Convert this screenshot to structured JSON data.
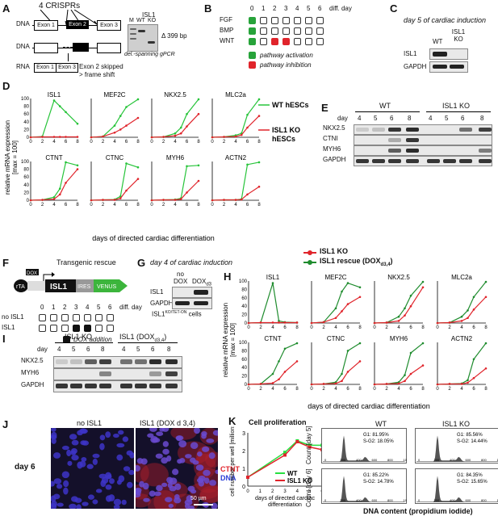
{
  "panels": {
    "A": {
      "label": "A",
      "crisprs": "4 CRISPRs",
      "dna": "DNA",
      "rna": "RNA",
      "exon1": "Exon 1",
      "exon2": "Exon 2",
      "exon3": "Exon 3",
      "gel_title": "ISL1",
      "gel_lanes": [
        "M",
        "WT",
        "KO"
      ],
      "delta": "Δ 399 bp",
      "gel_caption": "del.-spanning gPCR",
      "rna_note1": "Exon 2 skipped",
      "rna_note2": "> frame shift"
    },
    "B": {
      "label": "B",
      "days": [
        "0",
        "1",
        "2",
        "3",
        "4",
        "5",
        "6"
      ],
      "days_label": "diff. day",
      "rows": [
        {
          "name": "FGF",
          "cells": [
            "g",
            "",
            "",
            "",
            "",
            "",
            ""
          ]
        },
        {
          "name": "BMP",
          "cells": [
            "g",
            "",
            "",
            "",
            "",
            "",
            ""
          ]
        },
        {
          "name": "WNT",
          "cells": [
            "g",
            "",
            "r",
            "r",
            "",
            "",
            ""
          ]
        }
      ],
      "legend": [
        "pathway activation",
        "pathway inhibition"
      ],
      "colors": {
        "activation": "#27a33a",
        "inhibition": "#e0242b"
      }
    },
    "C": {
      "label": "C",
      "title": "day 5 of cardiac induction",
      "lanes": [
        "WT",
        "ISL1 KO"
      ],
      "rows": [
        "ISL1",
        "GAPDH"
      ]
    },
    "D": {
      "label": "D",
      "ylabel": "relative mRNA expression",
      "ylabel2": "[max = 100]",
      "xlabel": "days of directed cardiac differentiation",
      "legend_wt": "WT hESCs",
      "legend_ko1": "ISL1 KO",
      "legend_ko2": "hESCs",
      "genes": [
        "ISL1",
        "MEF2C",
        "NKX2.5",
        "MLC2a",
        "CTNT",
        "CTNC",
        "MYH6",
        "ACTN2"
      ]
    },
    "E": {
      "label": "E",
      "groups": [
        "WT",
        "ISL1 KO"
      ],
      "day_label": "day",
      "days": [
        "4",
        "5",
        "6",
        "8",
        "4",
        "5",
        "6",
        "8"
      ],
      "rows": [
        "NKX2.5",
        "CTNI",
        "MYH6",
        "GAPDH"
      ]
    },
    "F": {
      "label": "F",
      "title": "Transgenic rescue",
      "rta": "rTA",
      "dox": "DOX",
      "isl1": "ISL1",
      "ires": "IRES",
      "venus": "VENUS",
      "days": [
        "0",
        "1",
        "2",
        "3",
        "4",
        "5",
        "6"
      ],
      "days_label": "diff. day",
      "rows": [
        {
          "name": "no ISL1",
          "cells": [
            "",
            "",
            "",
            "",
            "",
            "",
            ""
          ]
        },
        {
          "name": "ISL1",
          "cells": [
            "",
            "",
            "",
            "k",
            "k",
            "",
            ""
          ]
        }
      ],
      "legend": "DOX addition"
    },
    "G": {
      "label": "G",
      "title": "day 4 of cardiac induction",
      "lane1a": "no",
      "lane1b": "DOX",
      "lane2": "DOX",
      "lane2_sub": "d3",
      "rows": [
        "ISL1",
        "GAPDH"
      ],
      "caption": "ISL1",
      "caption_sup": "KO/TET-ON",
      "caption_tail": " cells"
    },
    "H": {
      "label": "H",
      "legend_ko": "ISL1 KO",
      "legend_rescue": "ISL1 rescue (DOX",
      "legend_rescue_sub": "d3,4",
      "legend_rescue_tail": ")",
      "ylabel": "relative mRNA expression",
      "ylabel2": "[max = 100]",
      "xlabel": "days of directed cardiac differentiation",
      "genes": [
        "ISL1",
        "MEF2C",
        "NKX2.5",
        "MLC2a",
        "CTNT",
        "CTNC",
        "MYH6",
        "ACTN2"
      ]
    },
    "I": {
      "label": "I",
      "group1": "ISL1 KO",
      "group2": "ISL1 (DOX",
      "group2_sub": "d3,4",
      "group2_tail": ")",
      "day_label": "day",
      "days": [
        "4",
        "5",
        "6",
        "8",
        "4",
        "5",
        "6",
        "8"
      ],
      "rows": [
        "NKX2.5",
        "MYH6",
        "GAPDH"
      ]
    },
    "J": {
      "label": "J",
      "col1": "no ISL1",
      "col2": "ISL1 (DOX d 3,4)",
      "row": "day 6",
      "legend_ctnt": "CTNT",
      "legend_dna": "DNA",
      "scale": "50 µm"
    },
    "K": {
      "label": "K",
      "title": "Cell proliferation",
      "ylabel": "cell number per well [millions]",
      "xlabel1": "days of directed cardiac",
      "xlabel2": "differentiation",
      "legend": [
        "WT",
        "ISL1 KO"
      ],
      "col_wt": "WT",
      "col_ko": "ISL1 KO",
      "count_d5": "Count [day 5]",
      "count_d6": "Count [day 6]",
      "hist_xlabel": "DNA content (propidium iodide)",
      "stats": {
        "wt_d5": [
          "G1: 81.95%",
          "S-G2: 18.05%"
        ],
        "ko_d5": [
          "G1: 85.56%",
          "S-G2: 14.44%"
        ],
        "wt_d6": [
          "G1: 85.22%",
          "S-G2: 14.78%"
        ],
        "ko_d6": [
          "G1: 84.35%",
          "S-G2: 15.65%"
        ]
      },
      "hist_ticks": [
        "0",
        "200",
        "400",
        "600",
        "800",
        "1000"
      ]
    }
  },
  "chart_data": [
    {
      "type": "line",
      "panel": "D",
      "x": [
        0,
        2,
        4,
        5,
        6,
        8
      ],
      "ylim": [
        0,
        100
      ],
      "yticks": [
        0,
        20,
        40,
        60,
        80,
        100
      ],
      "xticks": [
        0,
        2,
        4,
        6,
        8
      ],
      "colors": {
        "wt": "#27c43a",
        "ko": "#e0242b"
      },
      "series": [
        {
          "gene": "ISL1",
          "wt": [
            0,
            2,
            95,
            80,
            65,
            35
          ],
          "ko": [
            0,
            1,
            1,
            1,
            1,
            1
          ]
        },
        {
          "gene": "MEF2C",
          "wt": [
            0,
            2,
            30,
            55,
            78,
            98
          ],
          "ko": [
            0,
            2,
            12,
            20,
            30,
            50
          ]
        },
        {
          "gene": "NKX2.5",
          "wt": [
            0,
            1,
            10,
            25,
            60,
            98
          ],
          "ko": [
            0,
            1,
            4,
            10,
            28,
            60
          ]
        },
        {
          "gene": "MLC2a",
          "wt": [
            0,
            1,
            5,
            10,
            58,
            98
          ],
          "ko": [
            0,
            1,
            2,
            6,
            25,
            55
          ]
        },
        {
          "gene": "CTNT",
          "wt": [
            0,
            1,
            8,
            30,
            98,
            90
          ],
          "ko": [
            0,
            1,
            3,
            15,
            45,
            80
          ]
        },
        {
          "gene": "CTNC",
          "wt": [
            0,
            1,
            2,
            10,
            95,
            85
          ],
          "ko": [
            0,
            1,
            1,
            5,
            25,
            55
          ]
        },
        {
          "gene": "MYH6",
          "wt": [
            0,
            1,
            2,
            5,
            88,
            90
          ],
          "ko": [
            0,
            1,
            1,
            3,
            20,
            50
          ]
        },
        {
          "gene": "ACTN2",
          "wt": [
            0,
            1,
            1,
            3,
            92,
            98
          ],
          "ko": [
            0,
            1,
            1,
            2,
            15,
            35
          ]
        }
      ]
    },
    {
      "type": "line",
      "panel": "H",
      "x": [
        0,
        2,
        4,
        5,
        6,
        8
      ],
      "ylim": [
        0,
        100
      ],
      "yticks": [
        0,
        20,
        40,
        60,
        80,
        100
      ],
      "xticks": [
        0,
        2,
        4,
        6,
        8
      ],
      "colors": {
        "rescue": "#1f8c2e",
        "ko": "#e0242b"
      },
      "series": [
        {
          "gene": "ISL1",
          "rescue": [
            0,
            1,
            95,
            5,
            2,
            1
          ],
          "ko": [
            0,
            1,
            1,
            1,
            1,
            1
          ]
        },
        {
          "gene": "MEF2C",
          "rescue": [
            0,
            2,
            35,
            75,
            95,
            85
          ],
          "ko": [
            0,
            2,
            12,
            28,
            45,
            62
          ]
        },
        {
          "gene": "NKX2.5",
          "rescue": [
            0,
            1,
            15,
            35,
            65,
            98
          ],
          "ko": [
            0,
            1,
            5,
            18,
            40,
            85
          ]
        },
        {
          "gene": "MLC2a",
          "rescue": [
            0,
            1,
            15,
            30,
            62,
            98
          ],
          "ko": [
            0,
            1,
            5,
            12,
            32,
            62
          ]
        },
        {
          "gene": "CTNT",
          "rescue": [
            0,
            1,
            25,
            55,
            85,
            98
          ],
          "ko": [
            0,
            1,
            3,
            12,
            30,
            55
          ]
        },
        {
          "gene": "CTNC",
          "rescue": [
            0,
            1,
            5,
            25,
            80,
            98
          ],
          "ko": [
            0,
            1,
            2,
            8,
            30,
            55
          ]
        },
        {
          "gene": "MYH6",
          "rescue": [
            0,
            1,
            5,
            22,
            75,
            98
          ],
          "ko": [
            0,
            1,
            2,
            8,
            25,
            45
          ]
        },
        {
          "gene": "ACTN2",
          "rescue": [
            0,
            1,
            2,
            10,
            60,
            98
          ],
          "ko": [
            0,
            1,
            1,
            4,
            15,
            38
          ]
        }
      ]
    },
    {
      "type": "line",
      "panel": "K",
      "x": [
        0,
        3,
        4,
        5,
        6
      ],
      "ylim": [
        0,
        3
      ],
      "yticks": [
        0,
        1,
        2,
        3
      ],
      "xticks": [
        0,
        1,
        2,
        3,
        4,
        5,
        6
      ],
      "series": [
        {
          "name": "WT",
          "color": "#27e040",
          "values": [
            0.5,
            1.9,
            2.55,
            2.3,
            2.3
          ]
        },
        {
          "name": "ISL1 KO",
          "color": "#e0242b",
          "values": [
            0.5,
            1.75,
            2.5,
            2.2,
            2.05
          ]
        }
      ]
    }
  ]
}
